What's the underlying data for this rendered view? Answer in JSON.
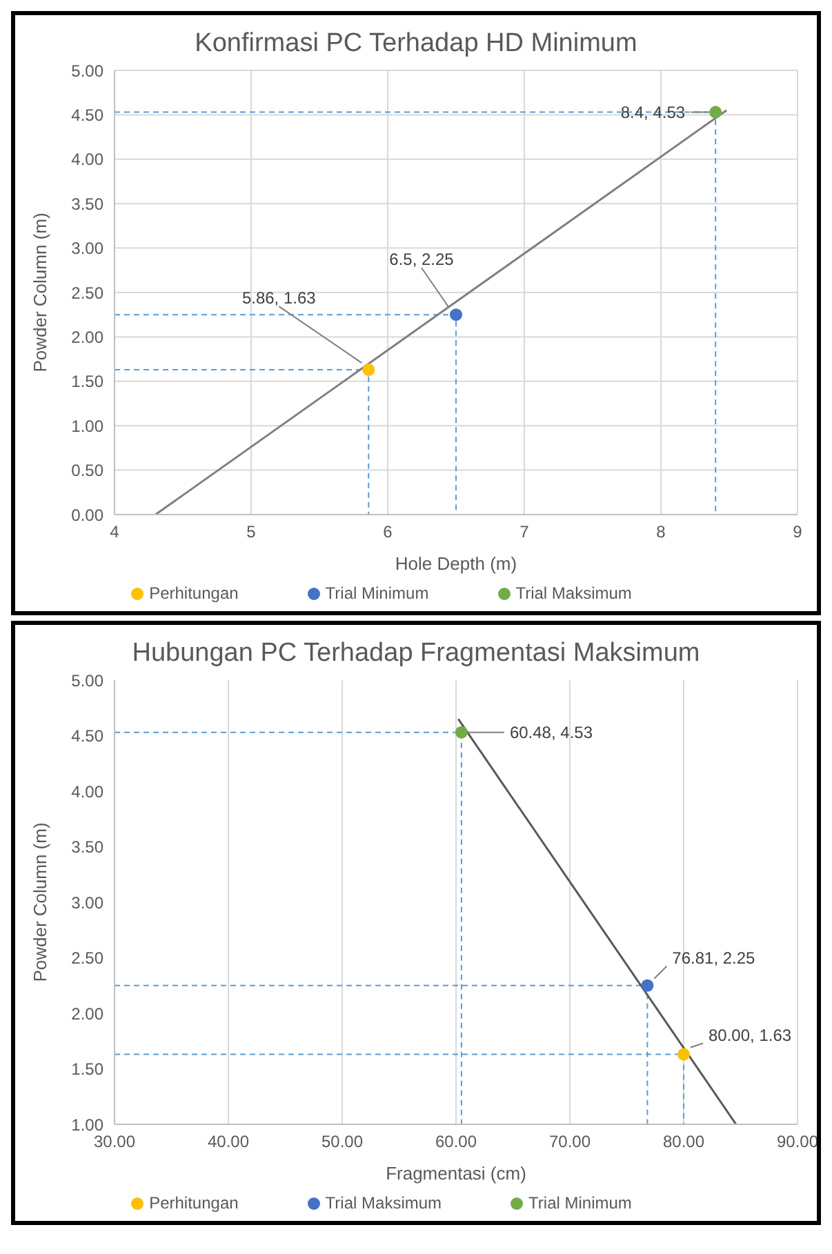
{
  "chart_data": [
    {
      "type": "scatter",
      "title": "Konfirmasi PC Terhadap HD Minimum",
      "xlabel": "Hole Depth (m)",
      "ylabel": "Powder Column (m)",
      "xlim": [
        4,
        9
      ],
      "xticks": [
        4,
        5,
        6,
        7,
        8,
        9
      ],
      "ylim": [
        0,
        5
      ],
      "yticks": [
        {
          "value": 0,
          "label": "0.00"
        },
        {
          "value": 0.5,
          "label": "0.50"
        },
        {
          "value": 1,
          "label": "1.00"
        },
        {
          "value": 1.5,
          "label": "1.50"
        },
        {
          "value": 2,
          "label": "2.00"
        },
        {
          "value": 2.5,
          "label": "2.50"
        },
        {
          "value": 3,
          "label": "3.00"
        },
        {
          "value": 3.5,
          "label": "3.50"
        },
        {
          "value": 4,
          "label": "4.00"
        },
        {
          "value": 4.5,
          "label": "4.50"
        },
        {
          "value": 5,
          "label": "5.00"
        }
      ],
      "grid": true,
      "legend": "bottom",
      "marker": "circle",
      "series": [
        {
          "type": "line",
          "color": "#5b9bd5",
          "line_style": "dashed",
          "marker": "none",
          "x": [
            4,
            5.86,
            5.86
          ],
          "values": [
            1.63,
            1.63,
            0
          ]
        },
        {
          "type": "line",
          "color": "#5b9bd5",
          "line_style": "dashed",
          "marker": "none",
          "x": [
            4,
            6.5,
            6.5
          ],
          "values": [
            2.25,
            2.25,
            0
          ]
        },
        {
          "type": "line",
          "color": "#5b9bd5",
          "line_style": "dashed",
          "marker": "none",
          "x": [
            4,
            8.4,
            8.4
          ],
          "values": [
            4.53,
            4.53,
            0
          ]
        },
        {
          "type": "line",
          "color": "#7f7f7f",
          "line_style": "solid",
          "marker": "none",
          "x": [
            4.3,
            8.48
          ],
          "values": [
            0,
            4.55
          ]
        },
        {
          "name": "Perhitungan",
          "color": "#ffc000",
          "x": [
            5.86
          ],
          "values": [
            1.63
          ]
        },
        {
          "name": "Trial Minimum",
          "color": "#4472c4",
          "x": [
            6.5
          ],
          "values": [
            2.25
          ]
        },
        {
          "name": "Trial Maksimum",
          "color": "#70ad47",
          "x": [
            8.4
          ],
          "values": [
            4.53
          ]
        }
      ],
      "annotations": [
        {
          "text": "5.86, 1.63",
          "x": 5.86,
          "y": 1.63
        },
        {
          "text": "6.5, 2.25",
          "x": 6.5,
          "y": 2.25
        },
        {
          "text": "8.4, 4.53",
          "x": 8.4,
          "y": 4.53
        }
      ]
    },
    {
      "type": "scatter",
      "title": "Hubungan PC Terhadap Fragmentasi Maksimum",
      "xlabel": "Fragmentasi (cm)",
      "ylabel": "Powder Column (m)",
      "xlim": [
        30,
        90
      ],
      "xticks": [
        {
          "value": 30,
          "label": "30.00"
        },
        {
          "value": 40,
          "label": "40.00"
        },
        {
          "value": 50,
          "label": "50.00"
        },
        {
          "value": 60,
          "label": "60.00"
        },
        {
          "value": 70,
          "label": "70.00"
        },
        {
          "value": 80,
          "label": "80.00"
        },
        {
          "value": 90,
          "label": "90.00"
        }
      ],
      "ylim": [
        1,
        5
      ],
      "yticks": [
        {
          "value": 1,
          "label": "1.00"
        },
        {
          "value": 1.5,
          "label": "1.50"
        },
        {
          "value": 2,
          "label": "2.00"
        },
        {
          "value": 2.5,
          "label": "2.50"
        },
        {
          "value": 3,
          "label": "3.00"
        },
        {
          "value": 3.5,
          "label": "3.50"
        },
        {
          "value": 4,
          "label": "4.00"
        },
        {
          "value": 4.5,
          "label": "4.50"
        },
        {
          "value": 5,
          "label": "5.00"
        }
      ],
      "grid": "x",
      "legend": "bottom",
      "marker": "circle",
      "series": [
        {
          "type": "line",
          "color": "#5b9bd5",
          "line_style": "dashed",
          "marker": "none",
          "x": [
            30,
            80,
            80
          ],
          "values": [
            1.63,
            1.63,
            1
          ]
        },
        {
          "type": "line",
          "color": "#5b9bd5",
          "line_style": "dashed",
          "marker": "none",
          "x": [
            30,
            76.81,
            76.81
          ],
          "values": [
            2.25,
            2.25,
            1
          ]
        },
        {
          "type": "line",
          "color": "#5b9bd5",
          "line_style": "dashed",
          "marker": "none",
          "x": [
            30,
            60.48,
            60.48
          ],
          "values": [
            4.53,
            4.53,
            1
          ]
        },
        {
          "type": "line",
          "color": "#595959",
          "line_style": "solid",
          "marker": "none",
          "x": [
            60.2,
            84.6
          ],
          "values": [
            4.65,
            1
          ]
        },
        {
          "name": "Perhitungan",
          "color": "#ffc000",
          "x": [
            80
          ],
          "values": [
            1.63
          ]
        },
        {
          "name": "Trial Maksimum",
          "color": "#4472c4",
          "x": [
            76.81
          ],
          "values": [
            2.25
          ]
        },
        {
          "name": "Trial Minimum",
          "color": "#70ad47",
          "x": [
            60.48
          ],
          "values": [
            4.53
          ]
        }
      ],
      "annotations": [
        {
          "text": "60.48, 4.53",
          "x": 60.48,
          "y": 4.53
        },
        {
          "text": "76.81, 2.25",
          "x": 76.81,
          "y": 2.25
        },
        {
          "text": "80.00, 1.63",
          "x": 80,
          "y": 1.63
        }
      ]
    }
  ]
}
